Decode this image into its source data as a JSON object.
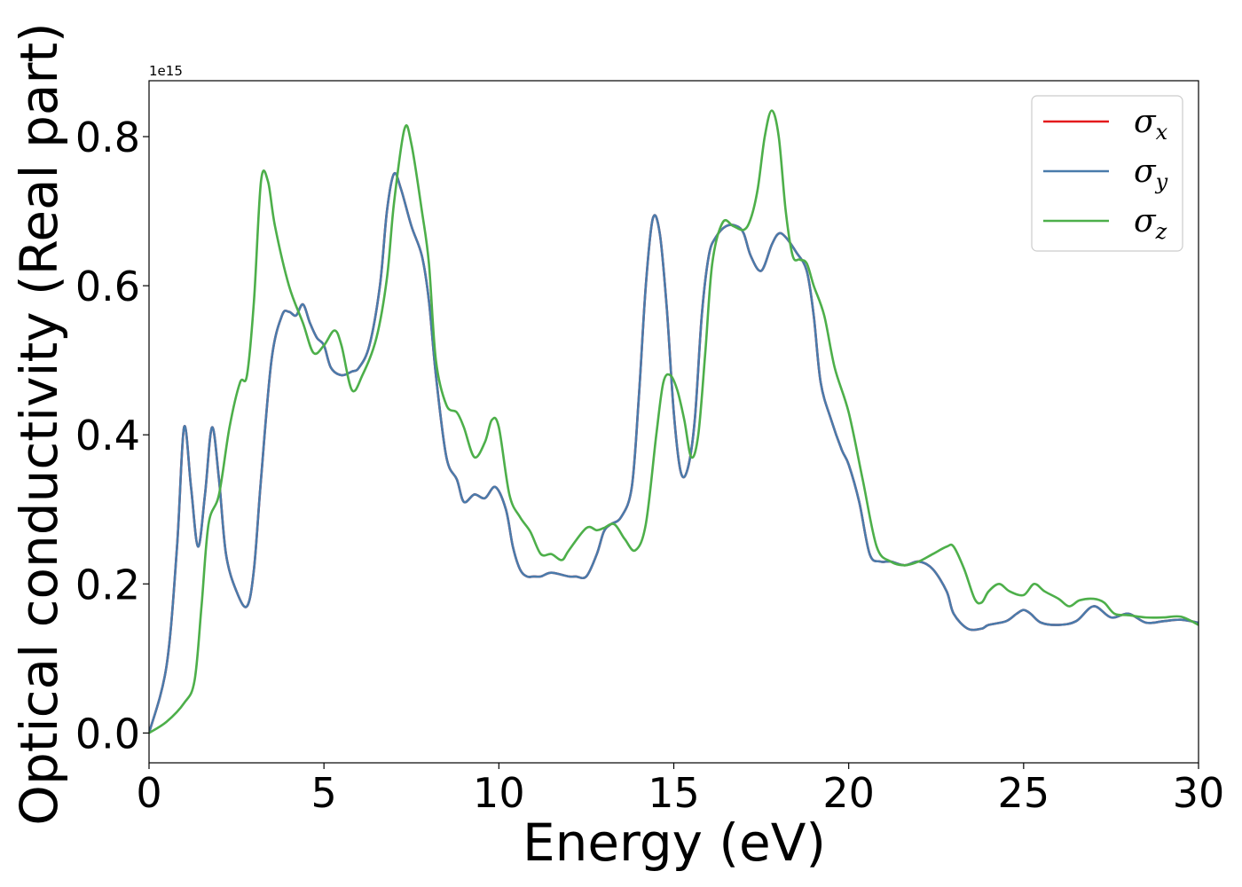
{
  "chart_data": {
    "type": "line",
    "title": "",
    "xlabel": "Energy (eV)",
    "ylabel": "Optical conductivity (Real part)",
    "y_offset_label": "1e15",
    "y_scale_factor": 1000000000000000.0,
    "xlim": [
      0,
      30
    ],
    "ylim": [
      -0.04,
      0.875
    ],
    "x_ticks": [
      0,
      5,
      10,
      15,
      20,
      25,
      30
    ],
    "x_tick_labels": [
      "0",
      "5",
      "10",
      "15",
      "20",
      "25",
      "30"
    ],
    "y_ticks": [
      0.0,
      0.2,
      0.4,
      0.6,
      0.8
    ],
    "y_tick_labels": [
      "0.0",
      "0.2",
      "0.4",
      "0.6",
      "0.8"
    ],
    "grid": false,
    "legend_position": "top-right",
    "series": [
      {
        "name": "σx",
        "symbol": "σ",
        "subscript": "x",
        "color": "#e41a1c",
        "x": [
          0,
          0.5,
          0.8,
          1.0,
          1.2,
          1.4,
          1.6,
          1.8,
          2.0,
          2.2,
          2.5,
          2.8,
          3.0,
          3.2,
          3.5,
          3.8,
          4.0,
          4.2,
          4.4,
          4.6,
          4.8,
          5.0,
          5.2,
          5.5,
          5.8,
          6.0,
          6.3,
          6.6,
          6.8,
          7.0,
          7.2,
          7.5,
          7.8,
          8.0,
          8.2,
          8.5,
          8.8,
          9.0,
          9.3,
          9.6,
          9.9,
          10.2,
          10.4,
          10.6,
          10.8,
          11.0,
          11.2,
          11.5,
          12.0,
          12.2,
          12.5,
          12.8,
          13.0,
          13.2,
          13.5,
          13.8,
          14.0,
          14.2,
          14.4,
          14.6,
          14.8,
          15.0,
          15.2,
          15.4,
          15.6,
          15.8,
          16.0,
          16.2,
          16.5,
          16.8,
          17.0,
          17.2,
          17.5,
          17.8,
          18.0,
          18.2,
          18.5,
          18.8,
          19.0,
          19.2,
          19.5,
          19.8,
          20.0,
          20.3,
          20.6,
          20.9,
          21.2,
          21.6,
          22.0,
          22.4,
          22.8,
          23.0,
          23.4,
          23.8,
          24.0,
          24.5,
          24.8,
          25.0,
          25.2,
          25.5,
          26.0,
          26.5,
          27.0,
          27.5,
          28.0,
          28.5,
          29.0,
          29.5,
          30.0
        ],
        "values": [
          0.0,
          0.09,
          0.25,
          0.41,
          0.33,
          0.25,
          0.32,
          0.41,
          0.34,
          0.24,
          0.19,
          0.17,
          0.22,
          0.34,
          0.5,
          0.56,
          0.565,
          0.56,
          0.575,
          0.55,
          0.53,
          0.52,
          0.49,
          0.48,
          0.485,
          0.49,
          0.52,
          0.6,
          0.7,
          0.75,
          0.73,
          0.68,
          0.64,
          0.58,
          0.48,
          0.37,
          0.34,
          0.31,
          0.32,
          0.315,
          0.33,
          0.3,
          0.25,
          0.22,
          0.21,
          0.21,
          0.21,
          0.215,
          0.21,
          0.21,
          0.21,
          0.24,
          0.27,
          0.28,
          0.29,
          0.33,
          0.45,
          0.6,
          0.69,
          0.67,
          0.57,
          0.43,
          0.35,
          0.355,
          0.42,
          0.56,
          0.64,
          0.665,
          0.68,
          0.68,
          0.67,
          0.64,
          0.62,
          0.655,
          0.67,
          0.665,
          0.645,
          0.62,
          0.56,
          0.47,
          0.42,
          0.38,
          0.36,
          0.31,
          0.24,
          0.23,
          0.23,
          0.225,
          0.23,
          0.22,
          0.19,
          0.16,
          0.14,
          0.14,
          0.145,
          0.15,
          0.16,
          0.165,
          0.16,
          0.148,
          0.145,
          0.15,
          0.17,
          0.155,
          0.16,
          0.148,
          0.15,
          0.152,
          0.148
        ]
      },
      {
        "name": "σy",
        "symbol": "σ",
        "subscript": "y",
        "color": "#4a7bab",
        "x": [
          0,
          0.5,
          0.8,
          1.0,
          1.2,
          1.4,
          1.6,
          1.8,
          2.0,
          2.2,
          2.5,
          2.8,
          3.0,
          3.2,
          3.5,
          3.8,
          4.0,
          4.2,
          4.4,
          4.6,
          4.8,
          5.0,
          5.2,
          5.5,
          5.8,
          6.0,
          6.3,
          6.6,
          6.8,
          7.0,
          7.2,
          7.5,
          7.8,
          8.0,
          8.2,
          8.5,
          8.8,
          9.0,
          9.3,
          9.6,
          9.9,
          10.2,
          10.4,
          10.6,
          10.8,
          11.0,
          11.2,
          11.5,
          12.0,
          12.2,
          12.5,
          12.8,
          13.0,
          13.2,
          13.5,
          13.8,
          14.0,
          14.2,
          14.4,
          14.6,
          14.8,
          15.0,
          15.2,
          15.4,
          15.6,
          15.8,
          16.0,
          16.2,
          16.5,
          16.8,
          17.0,
          17.2,
          17.5,
          17.8,
          18.0,
          18.2,
          18.5,
          18.8,
          19.0,
          19.2,
          19.5,
          19.8,
          20.0,
          20.3,
          20.6,
          20.9,
          21.2,
          21.6,
          22.0,
          22.4,
          22.8,
          23.0,
          23.4,
          23.8,
          24.0,
          24.5,
          24.8,
          25.0,
          25.2,
          25.5,
          26.0,
          26.5,
          27.0,
          27.5,
          28.0,
          28.5,
          29.0,
          29.5,
          30.0
        ],
        "values": [
          0.0,
          0.09,
          0.25,
          0.41,
          0.33,
          0.25,
          0.32,
          0.41,
          0.34,
          0.24,
          0.19,
          0.17,
          0.22,
          0.34,
          0.5,
          0.56,
          0.565,
          0.56,
          0.575,
          0.55,
          0.53,
          0.52,
          0.49,
          0.48,
          0.485,
          0.49,
          0.52,
          0.6,
          0.7,
          0.75,
          0.73,
          0.68,
          0.64,
          0.58,
          0.48,
          0.37,
          0.34,
          0.31,
          0.32,
          0.315,
          0.33,
          0.3,
          0.25,
          0.22,
          0.21,
          0.21,
          0.21,
          0.215,
          0.21,
          0.21,
          0.21,
          0.24,
          0.27,
          0.28,
          0.29,
          0.33,
          0.45,
          0.6,
          0.69,
          0.67,
          0.57,
          0.43,
          0.35,
          0.355,
          0.42,
          0.56,
          0.64,
          0.665,
          0.68,
          0.68,
          0.67,
          0.64,
          0.62,
          0.655,
          0.67,
          0.665,
          0.645,
          0.62,
          0.56,
          0.47,
          0.42,
          0.38,
          0.36,
          0.31,
          0.24,
          0.23,
          0.23,
          0.225,
          0.23,
          0.22,
          0.19,
          0.16,
          0.14,
          0.14,
          0.145,
          0.15,
          0.16,
          0.165,
          0.16,
          0.148,
          0.145,
          0.15,
          0.17,
          0.155,
          0.16,
          0.148,
          0.15,
          0.152,
          0.148
        ]
      },
      {
        "name": "σz",
        "symbol": "σ",
        "subscript": "z",
        "color": "#4daf4a",
        "x": [
          0,
          0.5,
          1.0,
          1.3,
          1.5,
          1.7,
          2.0,
          2.3,
          2.6,
          2.8,
          3.0,
          3.2,
          3.4,
          3.6,
          4.0,
          4.4,
          4.7,
          5.0,
          5.3,
          5.5,
          5.8,
          6.1,
          6.5,
          6.8,
          7.0,
          7.3,
          7.5,
          7.8,
          8.0,
          8.2,
          8.5,
          8.8,
          9.0,
          9.3,
          9.6,
          9.8,
          10.0,
          10.3,
          10.6,
          10.9,
          11.2,
          11.5,
          11.8,
          12.0,
          12.5,
          12.8,
          13.0,
          13.3,
          13.6,
          13.9,
          14.2,
          14.5,
          14.7,
          14.9,
          15.1,
          15.3,
          15.5,
          15.7,
          15.9,
          16.1,
          16.4,
          16.7,
          17.0,
          17.2,
          17.4,
          17.6,
          17.8,
          18.0,
          18.2,
          18.4,
          18.6,
          18.8,
          19.0,
          19.3,
          19.6,
          20.0,
          20.4,
          20.8,
          21.2,
          21.6,
          22.0,
          22.4,
          22.8,
          23.0,
          23.3,
          23.6,
          23.8,
          24.0,
          24.3,
          24.6,
          25.0,
          25.3,
          25.6,
          26.0,
          26.3,
          26.6,
          27.0,
          27.3,
          27.6,
          28.0,
          28.5,
          29.0,
          29.5,
          30.0
        ],
        "values": [
          0.0,
          0.015,
          0.04,
          0.07,
          0.17,
          0.28,
          0.32,
          0.41,
          0.47,
          0.48,
          0.58,
          0.74,
          0.74,
          0.68,
          0.6,
          0.55,
          0.51,
          0.52,
          0.54,
          0.52,
          0.46,
          0.48,
          0.53,
          0.61,
          0.71,
          0.81,
          0.79,
          0.7,
          0.63,
          0.5,
          0.44,
          0.43,
          0.41,
          0.37,
          0.39,
          0.42,
          0.41,
          0.32,
          0.29,
          0.27,
          0.24,
          0.24,
          0.232,
          0.245,
          0.275,
          0.272,
          0.275,
          0.28,
          0.26,
          0.245,
          0.28,
          0.4,
          0.47,
          0.48,
          0.46,
          0.42,
          0.37,
          0.4,
          0.51,
          0.63,
          0.685,
          0.68,
          0.675,
          0.69,
          0.73,
          0.8,
          0.835,
          0.8,
          0.7,
          0.64,
          0.635,
          0.63,
          0.6,
          0.56,
          0.49,
          0.43,
          0.34,
          0.25,
          0.23,
          0.225,
          0.23,
          0.24,
          0.25,
          0.25,
          0.22,
          0.18,
          0.175,
          0.19,
          0.2,
          0.19,
          0.185,
          0.2,
          0.19,
          0.18,
          0.17,
          0.178,
          0.18,
          0.175,
          0.16,
          0.158,
          0.155,
          0.155,
          0.156,
          0.145
        ]
      }
    ]
  }
}
